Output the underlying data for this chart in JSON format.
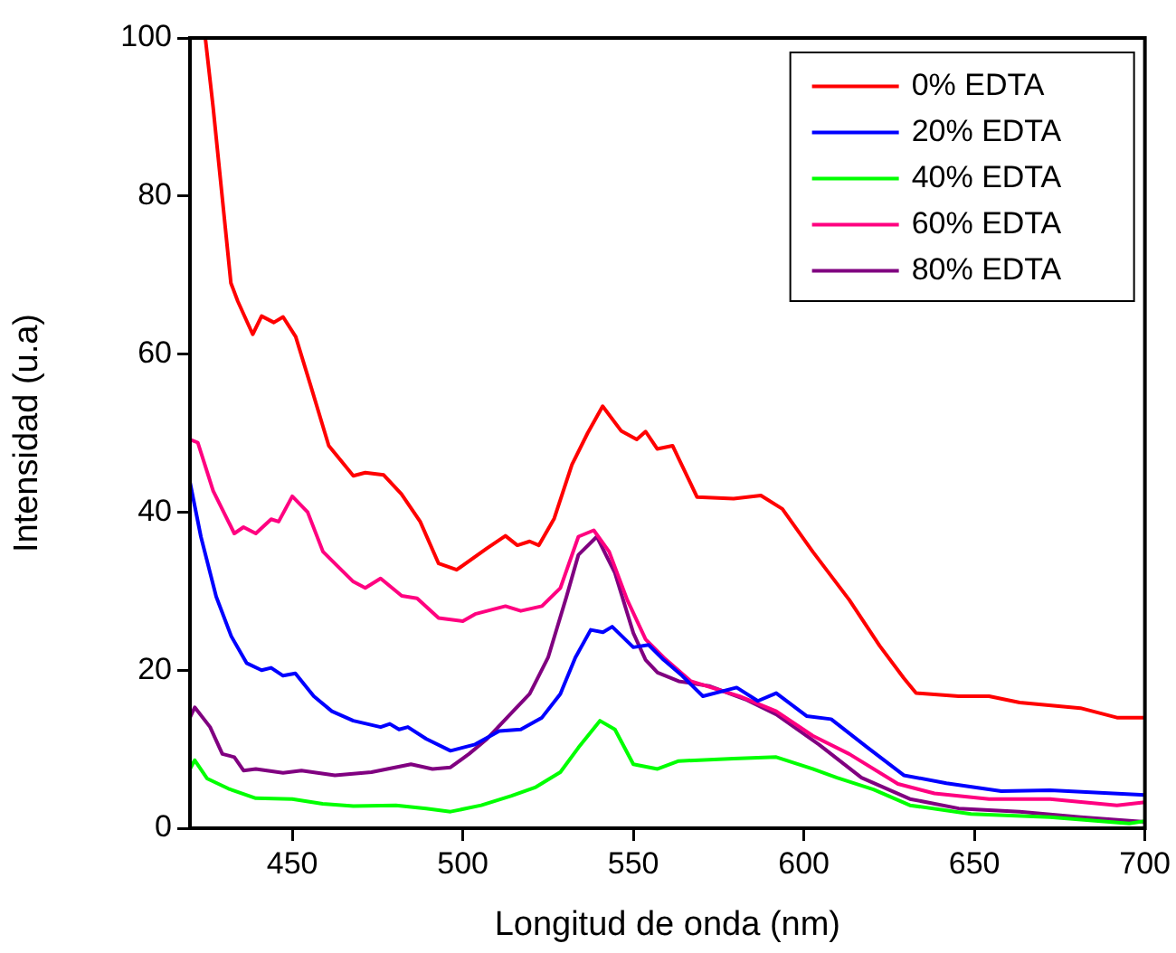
{
  "chart_data": {
    "type": "line",
    "xlabel": "Longitud de onda (nm)",
    "ylabel": "Intensidad (u.a)",
    "xlim": [
      420,
      700
    ],
    "ylim": [
      0,
      100
    ],
    "xticks": [
      450,
      500,
      550,
      600,
      650,
      700
    ],
    "yticks": [
      0,
      20,
      40,
      60,
      80,
      100
    ],
    "grid": false,
    "legend": "top right",
    "marker": "none",
    "line_style": "solid",
    "series": [
      {
        "name": "0% EDTA",
        "color": "#ff0000",
        "x": [
          424.5,
          426.8,
          432,
          434,
          438.4,
          441,
          444.6,
          447.3,
          451,
          455.4,
          460.7,
          467.9,
          471.4,
          476.8,
          482,
          487.5,
          492.9,
          498.2,
          507,
          512.5,
          516,
          519.6,
          522.3,
          526.8,
          532,
          536.6,
          541,
          546.4,
          551,
          553.6,
          557,
          561.5,
          568.7,
          579.4,
          587.4,
          593.7,
          602.6,
          613.3,
          622.2,
          629.3,
          632.9,
          645.4,
          654.3,
          663.3,
          681.1,
          691.8,
          700
        ],
        "values": [
          100,
          91.2,
          69,
          66.7,
          62.5,
          64.8,
          64,
          64.7,
          62.2,
          56,
          48.4,
          44.6,
          45,
          44.7,
          42.3,
          38.8,
          33.5,
          32.7,
          35.4,
          37,
          35.8,
          36.3,
          35.8,
          39.2,
          46,
          50,
          53.4,
          50.3,
          49.2,
          50.2,
          48,
          48.4,
          41.9,
          41.7,
          42.1,
          40.4,
          35,
          28.9,
          23.1,
          19,
          17.1,
          16.7,
          16.7,
          15.9,
          15.2,
          14,
          14
        ]
      },
      {
        "name": "20% EDTA",
        "color": "#0000ff",
        "x": [
          420,
          423.2,
          427.7,
          432.1,
          436.6,
          441,
          443.8,
          447.3,
          450.9,
          456.3,
          461.6,
          467.9,
          475.9,
          478.6,
          481.3,
          483.9,
          489.3,
          496.4,
          503.6,
          510.7,
          517,
          523.2,
          528.6,
          533,
          537.5,
          541.1,
          543.8,
          550,
          554.5,
          558.9,
          564.3,
          570.4,
          580.3,
          586.5,
          591.9,
          600.8,
          608,
          618.7,
          629.3,
          641.8,
          657.9,
          672.2,
          700
        ],
        "values": [
          43.8,
          36.9,
          29.3,
          24.3,
          20.9,
          20,
          20.3,
          19.3,
          19.6,
          16.7,
          14.8,
          13.6,
          12.8,
          13.2,
          12.5,
          12.8,
          11.3,
          9.8,
          10.6,
          12.3,
          12.5,
          14,
          17,
          21.6,
          25.1,
          24.8,
          25.5,
          22.9,
          23.2,
          21.3,
          19.3,
          16.7,
          17.8,
          16.1,
          17.1,
          14.2,
          13.8,
          10.2,
          6.7,
          5.7,
          4.7,
          4.8,
          4.2
        ]
      },
      {
        "name": "40% EDTA",
        "color": "#00ff00",
        "x": [
          420,
          421.4,
          425,
          431.3,
          439.3,
          450,
          458.9,
          467.9,
          480.4,
          489.3,
          496.4,
          505.4,
          514.3,
          521.4,
          528.6,
          533.9,
          540.2,
          544.6,
          550,
          557.1,
          563.3,
          579.4,
          591.9,
          602.6,
          609.7,
          620.4,
          631.1,
          649,
          672.2,
          695.4,
          700
        ],
        "values": [
          7.5,
          8.6,
          6.3,
          5,
          3.8,
          3.7,
          3.1,
          2.8,
          2.9,
          2.5,
          2.1,
          2.9,
          4.1,
          5.2,
          7.1,
          10.2,
          13.6,
          12.5,
          8.1,
          7.5,
          8.5,
          8.8,
          9,
          7.5,
          6.4,
          4.9,
          2.9,
          1.8,
          1.4,
          0.6,
          0.9
        ]
      },
      {
        "name": "60% EDTA",
        "color": "#ff0080",
        "x": [
          420,
          422.3,
          426.8,
          433,
          435.7,
          439.3,
          443.8,
          446,
          450,
          454.5,
          459,
          463.4,
          467.9,
          471.4,
          475.9,
          482.1,
          486.6,
          492.9,
          500,
          503.6,
          512.5,
          517,
          523.2,
          528.6,
          533.9,
          538.4,
          542.9,
          548.2,
          553.6,
          558.9,
          566.9,
          581.2,
          591.9,
          602.6,
          613.3,
          627.6,
          638.3,
          654.3,
          672.2,
          691.8,
          700
        ],
        "values": [
          49.2,
          48.8,
          42.7,
          37.3,
          38.1,
          37.3,
          39.1,
          38.8,
          42,
          40,
          35,
          33.1,
          31.2,
          30.4,
          31.6,
          29.4,
          29.1,
          26.6,
          26.2,
          27.1,
          28.1,
          27.5,
          28.1,
          30.4,
          36.9,
          37.7,
          35,
          28.9,
          23.9,
          21.6,
          18.6,
          16.7,
          14.8,
          11.7,
          9.4,
          5.6,
          4.4,
          3.7,
          3.7,
          2.9,
          3.3
        ]
      },
      {
        "name": "80% EDTA",
        "color": "#800080",
        "x": [
          420,
          421.4,
          425.9,
          429.5,
          433,
          435.7,
          439.3,
          447.3,
          452.7,
          462.5,
          473.2,
          484.8,
          491.1,
          496.4,
          501.8,
          507.1,
          514.3,
          519.6,
          525,
          530.4,
          533.9,
          539.3,
          544.6,
          550,
          553.6,
          557.1,
          563.3,
          572.2,
          582.9,
          591.9,
          604.4,
          616.9,
          631.1,
          645.4,
          663.3,
          681.1,
          700
        ],
        "values": [
          14,
          15.3,
          12.8,
          9.4,
          9,
          7.3,
          7.5,
          7,
          7.3,
          6.7,
          7.1,
          8.1,
          7.5,
          7.7,
          9.4,
          11.3,
          14.6,
          17,
          21.6,
          29.3,
          34.6,
          36.9,
          32.3,
          24.7,
          21.3,
          19.7,
          18.6,
          18,
          16.3,
          14.4,
          10.6,
          6.4,
          3.7,
          2.5,
          2.1,
          1.4,
          0.8
        ]
      }
    ]
  }
}
